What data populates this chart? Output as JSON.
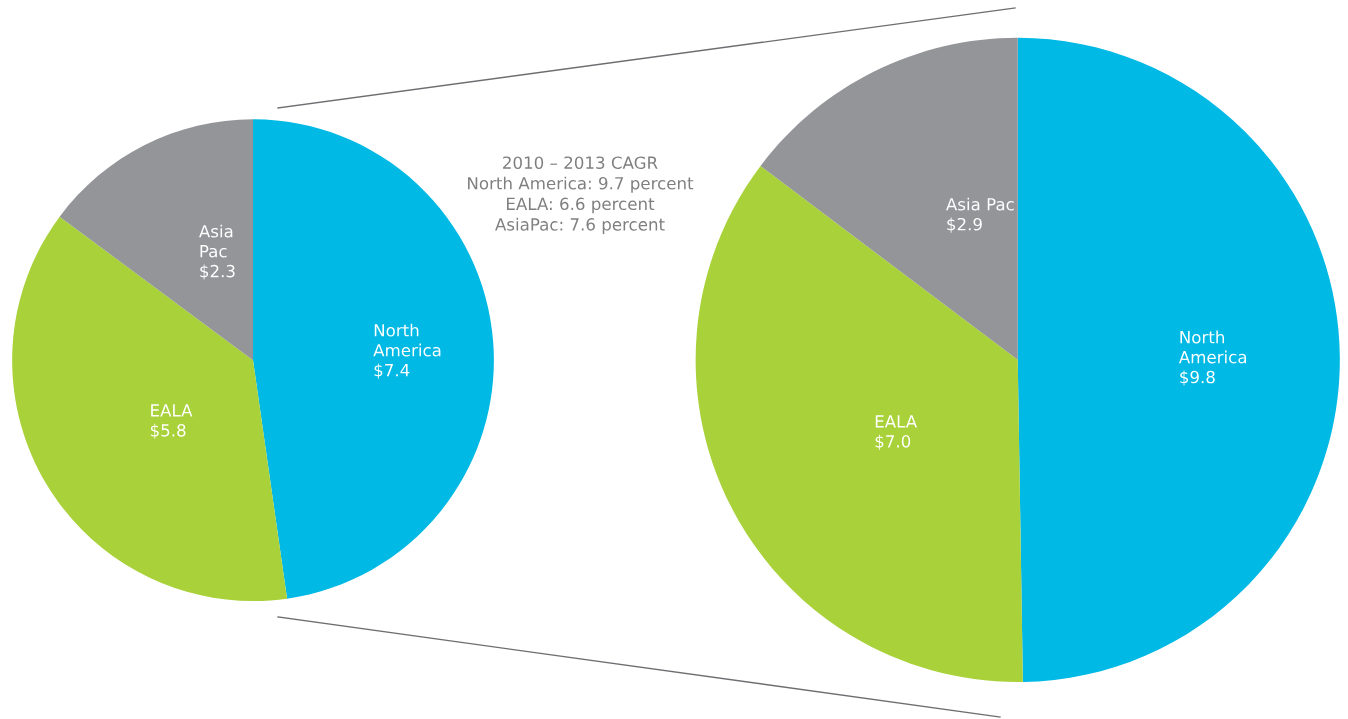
{
  "chart_data": [
    {
      "type": "pie",
      "categories": [
        "North\nAmerica",
        "EALA",
        "Asia\nPac"
      ],
      "values": [
        7.4,
        5.8,
        2.3
      ],
      "value_labels": [
        "$7.4",
        "$5.8",
        "$2.3"
      ],
      "colors": [
        "#00b9e4",
        "#a9d13a",
        "#939598"
      ],
      "annotations": [
        "2010 – 2013 CAGR\nNorth America: 9.7 percent\nEALA: 6.6 percent\nAsiaPac: 7.6 percent"
      ]
    },
    {
      "type": "pie",
      "categories": [
        "North\nAmerica",
        "EALA",
        "Asia Pac"
      ],
      "values": [
        9.8,
        7.0,
        2.9
      ],
      "value_labels": [
        "$9.8",
        "$7.0",
        "$2.9"
      ],
      "colors": [
        "#00b9e4",
        "#a9d13a",
        "#939598"
      ]
    }
  ]
}
